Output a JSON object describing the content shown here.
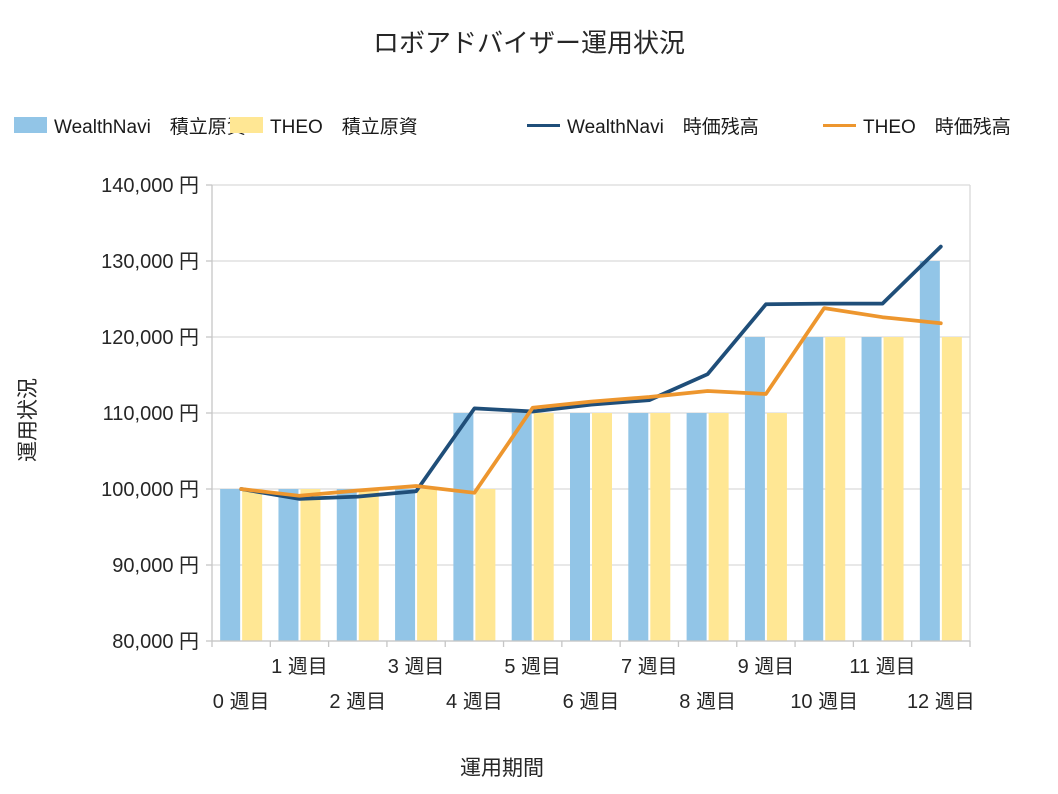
{
  "chart_data": {
    "type": "combo",
    "title": "ロボアドバイザー運用状況",
    "xlabel": "運用期間",
    "ylabel": "運用状況",
    "categories": [
      "0 週目",
      "1 週目",
      "2 週目",
      "3 週目",
      "4 週目",
      "5 週目",
      "6 週目",
      "7 週目",
      "8 週目",
      "9 週目",
      "10 週目",
      "11 週目",
      "12 週目"
    ],
    "ylim": [
      80000,
      140000
    ],
    "ytick_step": 10000,
    "ytick_labels": [
      "80,000 円",
      "90,000 円",
      "100,000 円",
      "110,000 円",
      "120,000 円",
      "130,000 円",
      "140,000 円"
    ],
    "y_unit": "円",
    "grid": true,
    "legend_position": "top",
    "series": [
      {
        "name": "WealthNavi　積立原資",
        "type": "bar",
        "color": "#92C5E7",
        "values": [
          100000,
          100000,
          100000,
          100000,
          110000,
          110000,
          110000,
          110000,
          110000,
          120000,
          120000,
          120000,
          130000
        ]
      },
      {
        "name": "THEO　積立原資",
        "type": "bar",
        "color": "#FFE794",
        "values": [
          100000,
          100000,
          100000,
          100000,
          100000,
          110000,
          110000,
          110000,
          110000,
          110000,
          120000,
          120000,
          120000
        ]
      },
      {
        "name": "WealthNavi　時価残高",
        "type": "line",
        "color": "#1F4E79",
        "values": [
          100000,
          98700,
          99000,
          99700,
          110600,
          110200,
          111100,
          111700,
          115100,
          124300,
          124400,
          124400,
          131900
        ]
      },
      {
        "name": "THEO　時価残高",
        "type": "line",
        "color": "#ED962E",
        "values": [
          100000,
          99100,
          99800,
          100400,
          99500,
          110700,
          111500,
          112100,
          112900,
          112500,
          123800,
          122600,
          121800
        ]
      }
    ],
    "colors": {
      "gridline": "#D9D9D9",
      "axis": "#C6C6C6",
      "text": "#262626",
      "background": "#FFFFFF"
    }
  }
}
